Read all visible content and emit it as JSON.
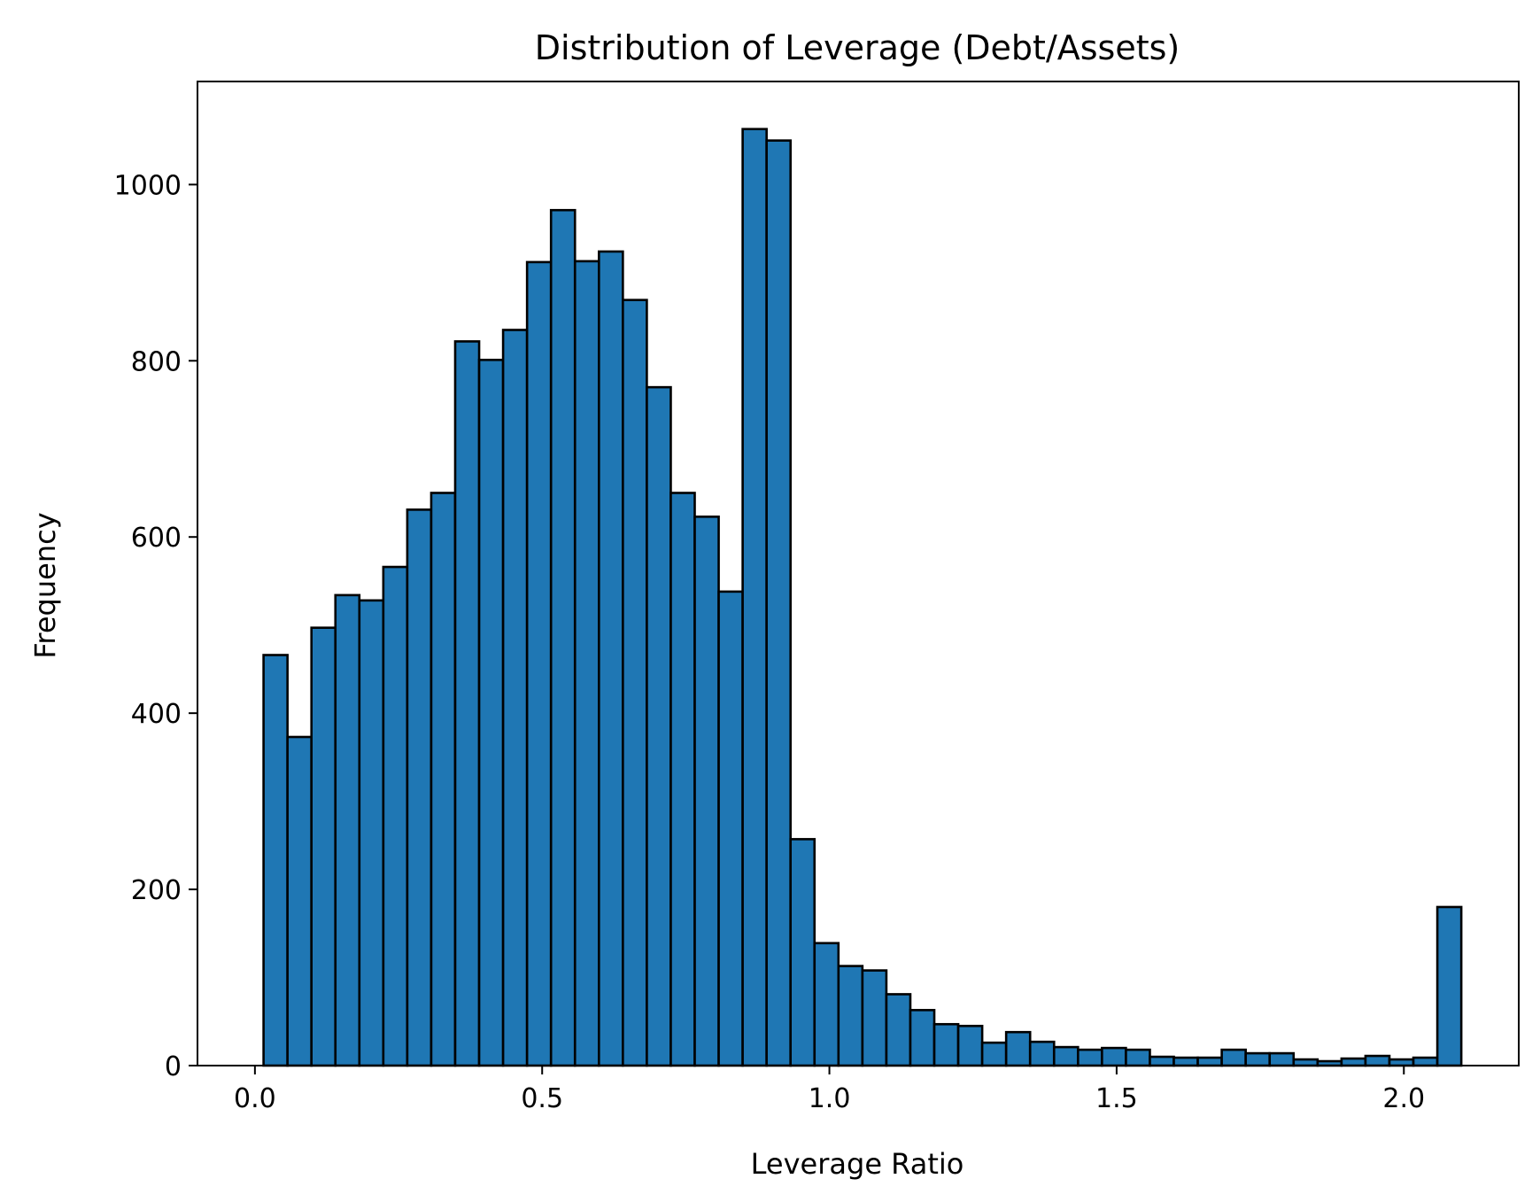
{
  "chart_data": {
    "type": "bar",
    "title": "Distribution of Leverage (Debt/Assets)",
    "xlabel": "Leverage Ratio",
    "ylabel": "Frequency",
    "xlim": [
      -0.1,
      2.2
    ],
    "ylim": [
      0,
      1117
    ],
    "xticks": [
      0.0,
      0.5,
      1.0,
      1.5,
      2.0
    ],
    "xtick_labels": [
      "0.0",
      "0.5",
      "1.0",
      "1.5",
      "2.0"
    ],
    "yticks": [
      0,
      200,
      400,
      600,
      800,
      1000
    ],
    "ytick_labels": [
      "0",
      "200",
      "400",
      "600",
      "800",
      "1000"
    ],
    "grid": false,
    "bin_start": 0.015,
    "bin_width": 0.0417,
    "bar_color": "#1f77b4",
    "edge_color": "#000000",
    "values": [
      466,
      373,
      497,
      534,
      528,
      566,
      631,
      650,
      822,
      801,
      835,
      912,
      971,
      913,
      924,
      869,
      770,
      650,
      623,
      538,
      1063,
      1050,
      257,
      139,
      113,
      108,
      81,
      63,
      47,
      45,
      26,
      38,
      27,
      21,
      18,
      20,
      18,
      10,
      9,
      9,
      18,
      14,
      14,
      7,
      5,
      8,
      11,
      7,
      9,
      180
    ]
  }
}
